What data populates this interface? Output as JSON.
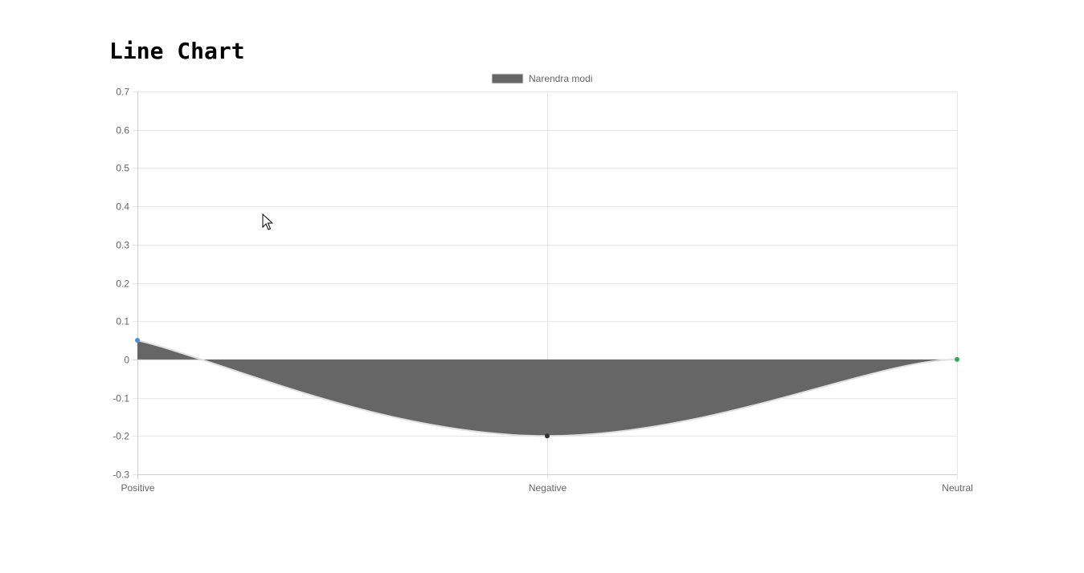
{
  "page": {
    "title": "Line Chart"
  },
  "colors": {
    "fill": "#666666",
    "line": "#e0e0e0",
    "grid": "#e6e6e6",
    "axis_text": "#666666",
    "legend_swatch": "#666666",
    "point_colors": [
      "#4a90d9",
      "#333333",
      "#2eaa55"
    ]
  },
  "chart_data": {
    "type": "area",
    "categories": [
      "Positive",
      "Negative",
      "Neutral"
    ],
    "series": [
      {
        "name": "Narendra modi",
        "values": [
          0.05,
          -0.2,
          0
        ]
      }
    ],
    "ylim": [
      -0.3,
      0.7
    ],
    "yticks": [
      0.7,
      0.6,
      0.5,
      0.4,
      0.3,
      0.2,
      0.1,
      0,
      -0.1,
      -0.2,
      -0.3
    ],
    "ytick_labels": [
      "0.7",
      "0.6",
      "0.5",
      "0.4",
      "0.3",
      "0.2",
      "0.1",
      "0",
      "-0.1",
      "-0.2",
      "-0.3"
    ],
    "grid": true,
    "legend_position": "top-center",
    "curve": "smooth",
    "fill_to": 0
  }
}
